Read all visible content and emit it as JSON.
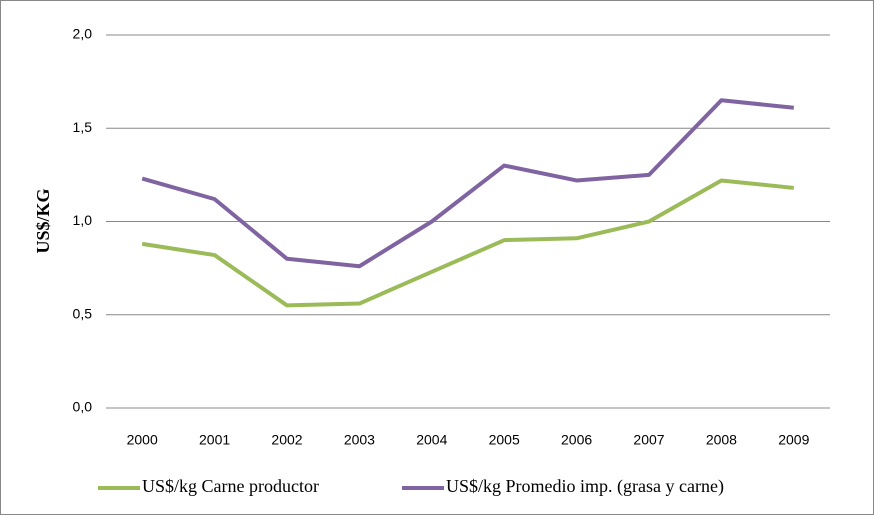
{
  "chart_data": {
    "type": "line",
    "y_label": "US$/KG",
    "categories": [
      "2000",
      "2001",
      "2002",
      "2003",
      "2004",
      "2005",
      "2006",
      "2007",
      "2008",
      "2009"
    ],
    "series": [
      {
        "name": "US$/kg Carne productor",
        "color": "#9bbb59",
        "values": [
          0.88,
          0.82,
          0.55,
          0.56,
          0.73,
          0.9,
          0.91,
          1.0,
          1.22,
          1.18
        ]
      },
      {
        "name": "US$/kg Promedio imp. (grasa y carne)",
        "color": "#8064a2",
        "values": [
          1.23,
          1.12,
          0.8,
          0.76,
          1.0,
          1.3,
          1.22,
          1.25,
          1.65,
          1.61
        ]
      }
    ],
    "ylim": [
      0,
      2
    ],
    "yticks": [
      {
        "value": 0,
        "label": "0,0"
      },
      {
        "value": 0.5,
        "label": "0,5"
      },
      {
        "value": 1,
        "label": "1,0"
      },
      {
        "value": 1.5,
        "label": "1,5"
      },
      {
        "value": 2,
        "label": "2,0"
      }
    ],
    "grid": true,
    "legend": "bottom"
  }
}
